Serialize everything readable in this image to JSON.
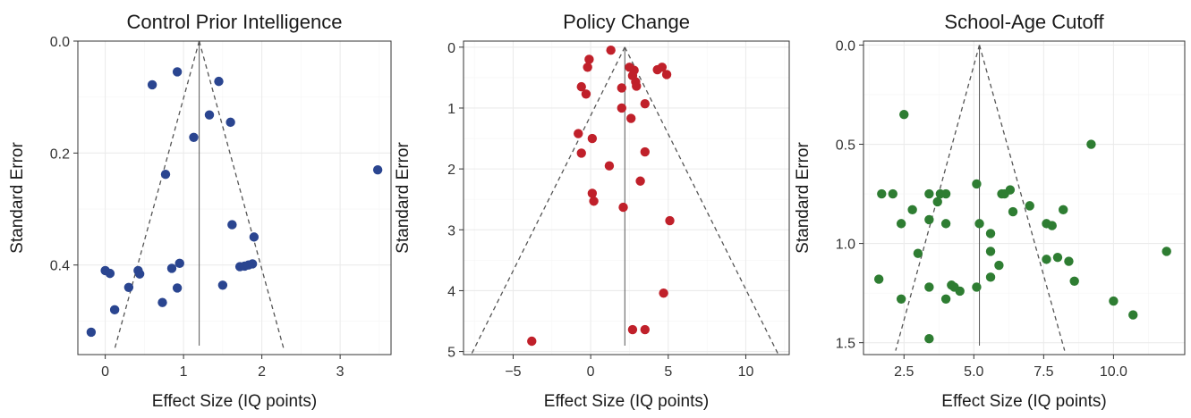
{
  "chart_data": [
    {
      "type": "scatter",
      "title": "Control Prior Intelligence",
      "xlabel": "Effect Size (IQ points)",
      "ylabel": "Standard Error",
      "xlim": [
        -0.35,
        3.65
      ],
      "ylim": [
        0,
        0.56
      ],
      "y_reversed": true,
      "xticks": [
        0,
        1,
        2,
        3
      ],
      "xtick_labels": [
        "0",
        "1",
        "2",
        "3"
      ],
      "yticks": [
        0.0,
        0.2,
        0.4
      ],
      "ytick_labels": [
        "0.0",
        "0.2",
        "0.4"
      ],
      "funnel_center": 1.2,
      "funnel_top_se": 0,
      "funnel_bottom_se": 0.55,
      "funnel_bottom_left": 0.12,
      "funnel_bottom_right": 2.28,
      "color": "#2a4590",
      "grid": true,
      "points": [
        {
          "x": 0.92,
          "y": 0.055
        },
        {
          "x": 0.6,
          "y": 0.078
        },
        {
          "x": 1.45,
          "y": 0.072
        },
        {
          "x": 1.33,
          "y": 0.132
        },
        {
          "x": 1.6,
          "y": 0.145
        },
        {
          "x": 1.13,
          "y": 0.172
        },
        {
          "x": 0.77,
          "y": 0.238
        },
        {
          "x": 3.48,
          "y": 0.23
        },
        {
          "x": 1.62,
          "y": 0.328
        },
        {
          "x": 1.9,
          "y": 0.35
        },
        {
          "x": 0.95,
          "y": 0.397
        },
        {
          "x": 0.85,
          "y": 0.406
        },
        {
          "x": 1.72,
          "y": 0.403
        },
        {
          "x": 1.78,
          "y": 0.402
        },
        {
          "x": 1.83,
          "y": 0.4
        },
        {
          "x": 1.88,
          "y": 0.398
        },
        {
          "x": 0.42,
          "y": 0.41
        },
        {
          "x": 0.44,
          "y": 0.416
        },
        {
          "x": 0.0,
          "y": 0.41
        },
        {
          "x": 0.06,
          "y": 0.415
        },
        {
          "x": 1.5,
          "y": 0.436
        },
        {
          "x": 0.3,
          "y": 0.44
        },
        {
          "x": 0.92,
          "y": 0.441
        },
        {
          "x": 0.73,
          "y": 0.467
        },
        {
          "x": 0.12,
          "y": 0.48
        },
        {
          "x": -0.18,
          "y": 0.52
        }
      ]
    },
    {
      "type": "scatter",
      "title": "Policy Change",
      "xlabel": "Effect Size (IQ points)",
      "ylabel": "Standard Error",
      "xlim": [
        -8.2,
        12.8
      ],
      "ylim": [
        -0.1,
        5.05
      ],
      "y_reversed": true,
      "xticks": [
        -5,
        0,
        5,
        10
      ],
      "xtick_labels": [
        "−5",
        "0",
        "5",
        "10"
      ],
      "yticks": [
        0,
        1,
        2,
        3,
        4,
        5
      ],
      "ytick_labels": [
        "0",
        "1",
        "2",
        "3",
        "4",
        "5"
      ],
      "funnel_center": 2.2,
      "funnel_top_se": 0,
      "funnel_bottom_se": 5.05,
      "funnel_bottom_left": -7.7,
      "funnel_bottom_right": 12.1,
      "color": "#c0202a",
      "grid": true,
      "points": [
        {
          "x": 1.3,
          "y": 0.05
        },
        {
          "x": -0.1,
          "y": 0.2
        },
        {
          "x": -0.2,
          "y": 0.33
        },
        {
          "x": 2.5,
          "y": 0.33
        },
        {
          "x": 2.8,
          "y": 0.38
        },
        {
          "x": 4.3,
          "y": 0.37
        },
        {
          "x": 4.6,
          "y": 0.33
        },
        {
          "x": 4.9,
          "y": 0.45
        },
        {
          "x": 2.7,
          "y": 0.47
        },
        {
          "x": 2.9,
          "y": 0.57
        },
        {
          "x": 2.95,
          "y": 0.64
        },
        {
          "x": -0.6,
          "y": 0.65
        },
        {
          "x": -0.3,
          "y": 0.77
        },
        {
          "x": 2.0,
          "y": 0.67
        },
        {
          "x": 3.5,
          "y": 0.93
        },
        {
          "x": 2.0,
          "y": 1.0
        },
        {
          "x": 2.6,
          "y": 1.17
        },
        {
          "x": -0.8,
          "y": 1.42
        },
        {
          "x": 0.1,
          "y": 1.5
        },
        {
          "x": -0.6,
          "y": 1.74
        },
        {
          "x": 3.5,
          "y": 1.72
        },
        {
          "x": 1.2,
          "y": 1.95
        },
        {
          "x": 3.2,
          "y": 2.2
        },
        {
          "x": 0.1,
          "y": 2.4
        },
        {
          "x": 0.2,
          "y": 2.53
        },
        {
          "x": 2.1,
          "y": 2.63
        },
        {
          "x": 5.1,
          "y": 2.85
        },
        {
          "x": 4.7,
          "y": 4.04
        },
        {
          "x": 2.7,
          "y": 4.64
        },
        {
          "x": 3.5,
          "y": 4.64
        },
        {
          "x": -3.8,
          "y": 4.83
        }
      ]
    },
    {
      "type": "scatter",
      "title": "School-Age Cutoff",
      "xlabel": "Effect Size (IQ points)",
      "ylabel": "Standard Error",
      "xlim": [
        1.05,
        12.55
      ],
      "ylim": [
        -0.02,
        1.56
      ],
      "y_reversed": true,
      "xticks": [
        2.5,
        5.0,
        7.5,
        10.0
      ],
      "xtick_labels": [
        "2.5",
        "5.0",
        "7.5",
        "10.0"
      ],
      "yticks": [
        0.0,
        0.5,
        1.0,
        1.5
      ],
      "ytick_labels": [
        "0.0",
        "0.5",
        "1.0",
        "1.5"
      ],
      "funnel_center": 5.2,
      "funnel_top_se": 0,
      "funnel_bottom_se": 1.54,
      "funnel_bottom_left": 2.2,
      "funnel_bottom_right": 8.25,
      "color": "#2e7d32",
      "grid": true,
      "points": [
        {
          "x": 2.5,
          "y": 0.35
        },
        {
          "x": 9.2,
          "y": 0.5
        },
        {
          "x": 5.1,
          "y": 0.7
        },
        {
          "x": 1.7,
          "y": 0.75
        },
        {
          "x": 2.1,
          "y": 0.75
        },
        {
          "x": 3.4,
          "y": 0.75
        },
        {
          "x": 3.8,
          "y": 0.75
        },
        {
          "x": 4.0,
          "y": 0.75
        },
        {
          "x": 6.0,
          "y": 0.75
        },
        {
          "x": 6.1,
          "y": 0.75
        },
        {
          "x": 6.3,
          "y": 0.73
        },
        {
          "x": 3.7,
          "y": 0.79
        },
        {
          "x": 7.0,
          "y": 0.81
        },
        {
          "x": 2.8,
          "y": 0.83
        },
        {
          "x": 8.2,
          "y": 0.83
        },
        {
          "x": 6.4,
          "y": 0.84
        },
        {
          "x": 3.4,
          "y": 0.88
        },
        {
          "x": 2.4,
          "y": 0.9
        },
        {
          "x": 4.0,
          "y": 0.9
        },
        {
          "x": 5.2,
          "y": 0.9
        },
        {
          "x": 7.6,
          "y": 0.9
        },
        {
          "x": 7.8,
          "y": 0.91
        },
        {
          "x": 5.6,
          "y": 0.95
        },
        {
          "x": 5.6,
          "y": 1.04
        },
        {
          "x": 11.9,
          "y": 1.04
        },
        {
          "x": 3.0,
          "y": 1.05
        },
        {
          "x": 8.0,
          "y": 1.07
        },
        {
          "x": 7.6,
          "y": 1.08
        },
        {
          "x": 8.4,
          "y": 1.09
        },
        {
          "x": 5.9,
          "y": 1.11
        },
        {
          "x": 5.6,
          "y": 1.17
        },
        {
          "x": 1.6,
          "y": 1.18
        },
        {
          "x": 8.6,
          "y": 1.19
        },
        {
          "x": 4.2,
          "y": 1.21
        },
        {
          "x": 3.4,
          "y": 1.22
        },
        {
          "x": 4.3,
          "y": 1.22
        },
        {
          "x": 5.1,
          "y": 1.22
        },
        {
          "x": 4.5,
          "y": 1.24
        },
        {
          "x": 4.0,
          "y": 1.28
        },
        {
          "x": 2.4,
          "y": 1.28
        },
        {
          "x": 10.0,
          "y": 1.29
        },
        {
          "x": 10.7,
          "y": 1.36
        },
        {
          "x": 3.4,
          "y": 1.48
        }
      ]
    }
  ]
}
